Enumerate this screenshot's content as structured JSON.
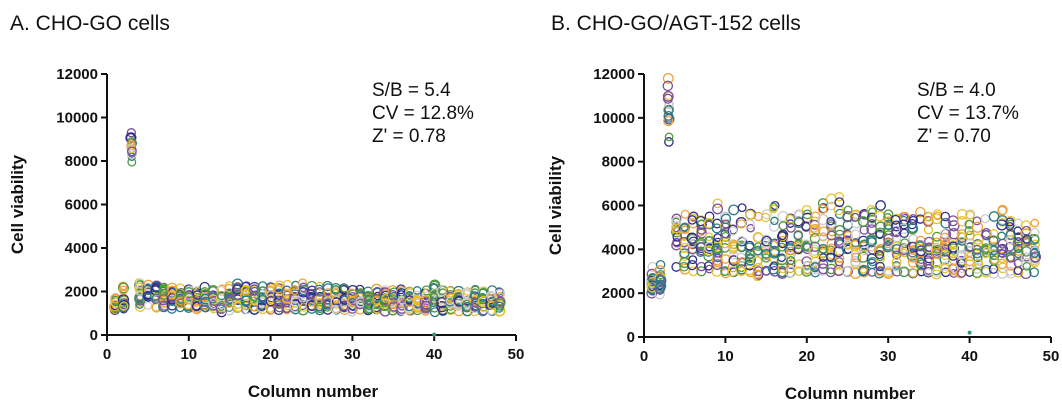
{
  "palette": [
    "#e8c32a",
    "#f2a13a",
    "#4d9a3e",
    "#2b7b87",
    "#2f2f8a",
    "#7c4f9a",
    "#cccccc"
  ],
  "chart_data": [
    {
      "type": "scatter",
      "title": "A. CHO-GO cells",
      "xlabel": "Column number",
      "ylabel": "Cell viability",
      "xlim": [
        0,
        50
      ],
      "ylim": [
        0,
        12000
      ],
      "xticks": [
        0,
        10,
        20,
        30,
        40,
        50
      ],
      "yticks": [
        0,
        2000,
        4000,
        6000,
        8000,
        10000,
        12000
      ],
      "grid": false,
      "annotations": [
        "S/B = 5.4",
        "CV = 12.8%",
        "Z' = 0.78"
      ],
      "series": [
        {
          "x": [
            1,
            2,
            3,
            4,
            5,
            6,
            7,
            8,
            9,
            10,
            11,
            12,
            13,
            14,
            15,
            16,
            17,
            18,
            19,
            20,
            21,
            22,
            23,
            24,
            25,
            26,
            27,
            28,
            29,
            30,
            31,
            32,
            33,
            34,
            35,
            36,
            37,
            38,
            39,
            40,
            41,
            42,
            43,
            44,
            45,
            46,
            47,
            48
          ],
          "y_center": [
            1450,
            1500,
            8550,
            1750,
            1850,
            1800,
            1750,
            1720,
            1700,
            1680,
            1650,
            1680,
            1620,
            1600,
            1680,
            1780,
            1700,
            1650,
            1680,
            1650,
            1620,
            1680,
            1700,
            1750,
            1680,
            1650,
            1620,
            1650,
            1620,
            1600,
            1600,
            1580,
            1620,
            1550,
            1560,
            1580,
            1600,
            1550,
            1560,
            1600,
            1520,
            1580,
            1540,
            1520,
            1550,
            1500,
            1560,
            1480
          ],
          "y_min": [
            1150,
            1200,
            7950,
            1300,
            1350,
            1250,
            1300,
            1200,
            1250,
            1250,
            1200,
            1250,
            1200,
            1050,
            1150,
            1250,
            1150,
            1150,
            1200,
            1150,
            1150,
            1150,
            1200,
            1150,
            1200,
            1150,
            1150,
            1150,
            1150,
            1100,
            1150,
            1150,
            1150,
            1100,
            1150,
            1100,
            1150,
            1150,
            1100,
            1050,
            1100,
            1150,
            1100,
            1100,
            1100,
            1100,
            1100,
            1100
          ],
          "y_max": [
            1700,
            2250,
            9300,
            2400,
            2300,
            2250,
            2200,
            2150,
            2150,
            2100,
            2050,
            2200,
            2050,
            2100,
            2250,
            2350,
            2250,
            2200,
            2250,
            2200,
            2250,
            2300,
            2300,
            2400,
            2250,
            2250,
            2250,
            2150,
            2150,
            2050,
            2100,
            2000,
            2100,
            2050,
            2050,
            2100,
            2000,
            2050,
            2050,
            2300,
            2050,
            2050,
            2000,
            2000,
            2100,
            2000,
            2050,
            2000
          ],
          "outliers": [
            [
              40,
              20
            ]
          ]
        }
      ]
    },
    {
      "type": "scatter",
      "title": "B. CHO-GO/AGT-152 cells",
      "xlabel": "Column number",
      "ylabel": "Cell viability",
      "xlim": [
        0,
        50
      ],
      "ylim": [
        0,
        12000
      ],
      "xticks": [
        0,
        10,
        20,
        30,
        40,
        50
      ],
      "yticks": [
        0,
        2000,
        4000,
        6000,
        8000,
        10000,
        12000
      ],
      "grid": false,
      "annotations": [
        "S/B = 4.0",
        "CV = 13.7%",
        "Z' = 0.70"
      ],
      "series": [
        {
          "x": [
            1,
            2,
            3,
            4,
            5,
            6,
            7,
            8,
            9,
            10,
            11,
            12,
            13,
            14,
            15,
            16,
            17,
            18,
            19,
            20,
            21,
            22,
            23,
            24,
            25,
            26,
            27,
            28,
            29,
            30,
            31,
            32,
            33,
            34,
            35,
            36,
            37,
            38,
            39,
            40,
            41,
            42,
            43,
            44,
            45,
            46,
            47,
            48
          ],
          "y_center": [
            2500,
            2600,
            10600,
            4300,
            4600,
            4350,
            4200,
            4100,
            4150,
            4300,
            4250,
            4100,
            4000,
            3950,
            4100,
            4250,
            4100,
            4150,
            4200,
            4150,
            4100,
            4200,
            4250,
            4300,
            4200,
            4150,
            4250,
            4100,
            4050,
            4150,
            4100,
            4050,
            4100,
            4200,
            4100,
            4050,
            4000,
            4100,
            4100,
            4000,
            4000,
            4050,
            4050,
            4000,
            4050,
            3950,
            4000,
            3950
          ],
          "y_min": [
            2000,
            1950,
            8900,
            3200,
            3100,
            3000,
            3000,
            3100,
            3000,
            2900,
            2950,
            3000,
            2950,
            2800,
            3000,
            3000,
            2900,
            2950,
            3000,
            3000,
            2950,
            3000,
            2950,
            3000,
            3000,
            2900,
            2950,
            2950,
            2900,
            2900,
            3000,
            2950,
            2900,
            2950,
            2950,
            2850,
            2950,
            2900,
            2900,
            2950,
            2900,
            2950,
            2900,
            2900,
            2900,
            2950,
            2900,
            2950
          ],
          "y_max": [
            3200,
            3300,
            11800,
            5400,
            5600,
            5500,
            5300,
            5500,
            6100,
            5500,
            5800,
            5900,
            5600,
            5500,
            5600,
            6000,
            5500,
            5400,
            5600,
            5800,
            5500,
            6100,
            6300,
            6400,
            5800,
            5600,
            5600,
            5800,
            6000,
            5600,
            5400,
            5500,
            5400,
            5700,
            5500,
            5600,
            5500,
            5300,
            5600,
            5600,
            5300,
            5400,
            5500,
            5800,
            5300,
            5200,
            5100,
            5200
          ],
          "outliers": [
            [
              40,
              200
            ]
          ]
        }
      ]
    }
  ]
}
